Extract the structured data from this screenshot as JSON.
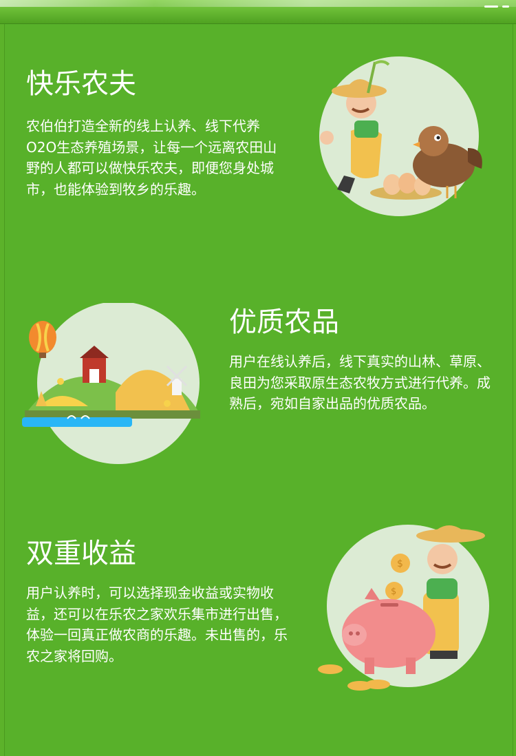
{
  "sections": [
    {
      "title": "快乐农夫",
      "body": "农伯伯打造全新的线上认养、线下代养O2O生态养殖场景，让每一个远离农田山野的人都可以做快乐农夫，即便您身处城市，也能体验到牧乡的乐趣。",
      "illustration": "farmer-with-chicken"
    },
    {
      "title": "优质农品",
      "body": "用户在线认养后，线下真实的山林、草原、良田为您采取原生态农牧方式进行代养。成熟后，宛如自家出品的优质农品。",
      "illustration": "farm-landscape"
    },
    {
      "title": "双重收益",
      "body": "用户认养时，可以选择现金收益或实物收益，还可以在乐农之家欢乐集市进行出售，体验一回真正做农商的乐趣。未出售的，乐农之家将回购。",
      "illustration": "farmer-with-piggy-bank"
    }
  ],
  "colors": {
    "background": "#58b12a",
    "circle": "#dcebd4",
    "text": "#ffffff"
  }
}
